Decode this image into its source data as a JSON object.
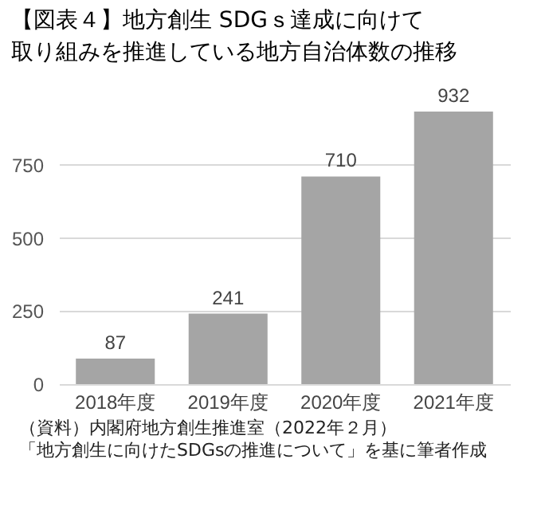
{
  "chart_data": {
    "type": "bar",
    "title": "【図表４】地方創生 SDGｓ達成に向けて",
    "subtitle": "取り組みを推進している地方自治体数の推移",
    "categories": [
      "2018年度",
      "2019年度",
      "2020年度",
      "2021年度"
    ],
    "values": [
      87,
      241,
      710,
      932
    ],
    "color": "#a5a5a5",
    "ylim": [
      0,
      932
    ],
    "yticks": [
      0,
      250,
      500,
      750
    ],
    "grid": "y",
    "data_labels": true,
    "annotations": [
      "（資料）内閣府地方創生推進室（2022年２月）",
      "「地方創生に向けたSDGsの推進について」を基に筆者作成"
    ]
  }
}
